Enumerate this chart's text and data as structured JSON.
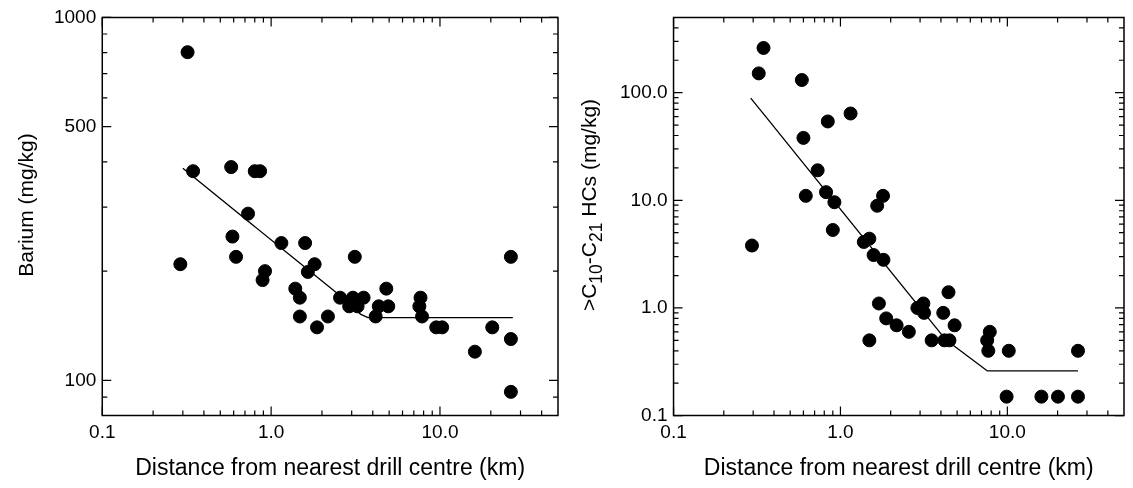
{
  "chart_data": [
    {
      "type": "scatter",
      "xlabel": "Distance from nearest drill centre (km)",
      "ylabel": "Barium (mg/kg)",
      "log": "xy",
      "marker": "circle",
      "xlim": [
        0.1,
        50
      ],
      "ylim": [
        80,
        1000
      ],
      "xticks": [
        0.1,
        {
          "value": 0.2,
          "label": null
        },
        {
          "value": 0.3,
          "label": null
        },
        {
          "value": 0.4,
          "label": null
        },
        {
          "value": 0.5,
          "label": null
        },
        {
          "value": 0.6,
          "label": null
        },
        {
          "value": 0.7,
          "label": null
        },
        {
          "value": 0.8,
          "label": null
        },
        {
          "value": 0.9,
          "label": null
        },
        {
          "value": 1,
          "label": "1.0"
        },
        {
          "value": 2,
          "label": null
        },
        {
          "value": 3,
          "label": null
        },
        {
          "value": 4,
          "label": null
        },
        {
          "value": 5,
          "label": null
        },
        {
          "value": 6,
          "label": null
        },
        {
          "value": 7,
          "label": null
        },
        {
          "value": 8,
          "label": null
        },
        {
          "value": 9,
          "label": null
        },
        {
          "value": 10,
          "label": "10.0"
        },
        {
          "value": 20,
          "label": null
        },
        {
          "value": 30,
          "label": null
        },
        {
          "value": 40,
          "label": null
        }
      ],
      "yticks": [
        {
          "value": 90,
          "label": null
        },
        100,
        {
          "value": 200,
          "label": null
        },
        {
          "value": 300,
          "label": null
        },
        {
          "value": 400,
          "label": null
        },
        500,
        {
          "value": 600,
          "label": null
        },
        {
          "value": 700,
          "label": null
        },
        {
          "value": 800,
          "label": null
        },
        {
          "value": 900,
          "label": null
        },
        1000
      ],
      "series": [
        {
          "type": "scatter",
          "color": "#000000",
          "x": [
            0.32,
            0.345,
            0.29,
            0.58,
            0.8,
            0.86,
            0.73,
            0.59,
            0.62,
            0.92,
            0.89,
            1.15,
            1.59,
            1.81,
            1.65,
            1.39,
            1.48,
            1.48,
            1.87,
            2.17,
            3.13,
            2.56,
            3.05,
            3.53,
            2.9,
            3.25,
            4.81,
            4.34,
            4.94,
            4.16,
            7.67,
            7.55,
            7.83,
            9.5,
            10.3,
            20.4,
            16.1,
            26.3,
            26.3,
            26.3
          ],
          "values": [
            802,
            377,
            209,
            387,
            377,
            377,
            288,
            249,
            219,
            200,
            189,
            239,
            239,
            209,
            199,
            179,
            169,
            150,
            140,
            150,
            219,
            169,
            169,
            169,
            160,
            160,
            179,
            160,
            160,
            150,
            169,
            160,
            150,
            140,
            140,
            140,
            120,
            219,
            130,
            93
          ]
        },
        {
          "type": "line",
          "color": "#000000",
          "marker": "none",
          "x": [
            0.3,
            2.45,
            3.4,
            3.75,
            27
          ],
          "values": [
            384,
            174,
            152,
            149,
            149
          ]
        }
      ]
    },
    {
      "type": "scatter",
      "xlabel": "Distance from nearest drill centre (km)",
      "ylabel": ">C$_{10}$-C$_{21}$ HCs (mg/kg)",
      "log": "xy",
      "marker": "circle",
      "xlim": [
        0.1,
        50
      ],
      "ylim": [
        0.1,
        500
      ],
      "xticks": [
        0.1,
        {
          "value": 0.2,
          "label": null
        },
        {
          "value": 0.3,
          "label": null
        },
        {
          "value": 0.4,
          "label": null
        },
        {
          "value": 0.5,
          "label": null
        },
        {
          "value": 0.6,
          "label": null
        },
        {
          "value": 0.7,
          "label": null
        },
        {
          "value": 0.8,
          "label": null
        },
        {
          "value": 0.9,
          "label": null
        },
        {
          "value": 1,
          "label": "1.0"
        },
        {
          "value": 2,
          "label": null
        },
        {
          "value": 3,
          "label": null
        },
        {
          "value": 4,
          "label": null
        },
        {
          "value": 5,
          "label": null
        },
        {
          "value": 6,
          "label": null
        },
        {
          "value": 7,
          "label": null
        },
        {
          "value": 8,
          "label": null
        },
        {
          "value": 9,
          "label": null
        },
        {
          "value": 10,
          "label": "10.0"
        },
        {
          "value": 20,
          "label": null
        },
        {
          "value": 30,
          "label": null
        },
        {
          "value": 40,
          "label": null
        }
      ],
      "yticks": [
        0.1,
        {
          "value": 0.2,
          "label": null
        },
        {
          "value": 0.3,
          "label": null
        },
        {
          "value": 0.4,
          "label": null
        },
        {
          "value": 0.5,
          "label": null
        },
        {
          "value": 0.6,
          "label": null
        },
        {
          "value": 0.7,
          "label": null
        },
        {
          "value": 0.8,
          "label": null
        },
        {
          "value": 0.9,
          "label": null
        },
        {
          "value": 1,
          "label": "1.0"
        },
        {
          "value": 2,
          "label": null
        },
        {
          "value": 3,
          "label": null
        },
        {
          "value": 4,
          "label": null
        },
        {
          "value": 5,
          "label": null
        },
        {
          "value": 6,
          "label": null
        },
        {
          "value": 7,
          "label": null
        },
        {
          "value": 8,
          "label": null
        },
        {
          "value": 9,
          "label": null
        },
        {
          "value": 10,
          "label": "10.0"
        },
        {
          "value": 20,
          "label": null
        },
        {
          "value": 30,
          "label": null
        },
        {
          "value": 40,
          "label": null
        },
        {
          "value": 50,
          "label": null
        },
        {
          "value": 60,
          "label": null
        },
        {
          "value": 70,
          "label": null
        },
        {
          "value": 80,
          "label": null
        },
        {
          "value": 90,
          "label": null
        },
        {
          "value": 100,
          "label": "100.0"
        },
        {
          "value": 200,
          "label": null
        },
        {
          "value": 300,
          "label": null
        },
        {
          "value": 400,
          "label": null
        }
      ],
      "series": [
        {
          "type": "scatter",
          "color": "#000000",
          "x": [
            0.346,
            0.324,
            0.587,
            1.15,
            0.84,
            0.6,
            0.73,
            0.82,
            0.62,
            0.92,
            0.9,
            0.295,
            1.8,
            1.66,
            1.38,
            1.49,
            1.58,
            1.81,
            1.7,
            1.49,
            1.88,
            2.17,
            2.57,
            2.89,
            3.14,
            3.17,
            3.52,
            4.13,
            4.44,
            4.83,
            4.2,
            4.5,
            7.85,
            7.57,
            7.69,
            10.2,
            26.5,
            9.9,
            16,
            20.1,
            26.5
          ],
          "values": [
            260,
            151,
            131,
            64,
            54,
            38,
            19,
            11.9,
            11,
            9.6,
            5.3,
            3.8,
            11,
            8.9,
            4.1,
            4.4,
            3.1,
            2.8,
            1.1,
            0.5,
            0.8,
            0.69,
            0.6,
            1.0,
            1.1,
            0.9,
            0.5,
            0.9,
            1.4,
            0.69,
            0.5,
            0.5,
            0.6,
            0.5,
            0.4,
            0.4,
            0.4,
            0.15,
            0.15,
            0.15,
            0.15
          ]
        },
        {
          "type": "line",
          "color": "#000000",
          "marker": "none",
          "x": [
            0.29,
            4.26,
            7.6,
            26.5
          ],
          "values": [
            89,
            0.51,
            0.26,
            0.26
          ]
        }
      ]
    }
  ]
}
